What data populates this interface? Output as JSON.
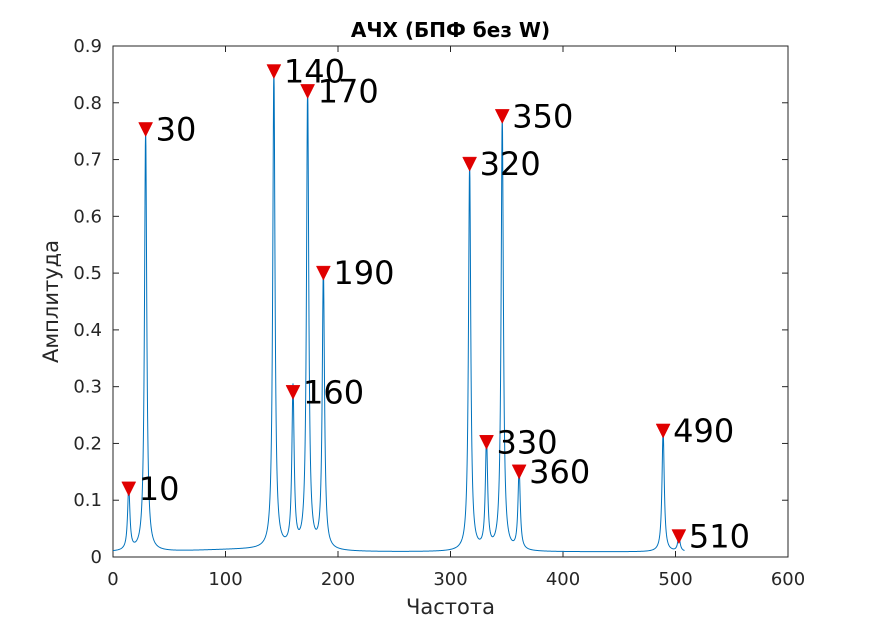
{
  "chart_data": {
    "type": "line",
    "title": "АЧХ (БПФ без W)",
    "xlabel": "Частота",
    "ylabel": "Амплитуда",
    "xlim": [
      0,
      600
    ],
    "ylim": [
      0,
      0.9
    ],
    "x_ticks": [
      "0",
      "100",
      "200",
      "300",
      "400",
      "500",
      "600"
    ],
    "y_ticks": [
      "0",
      "0.1",
      "0.2",
      "0.3",
      "0.4",
      "0.5",
      "0.6",
      "0.7",
      "0.8",
      "0.9"
    ],
    "grid": false,
    "line_color": "#0072BD",
    "marker_color": "#E00000",
    "series": [
      {
        "peaks": [
          {
            "x": 14,
            "y": 0.12
          },
          {
            "x": 29,
            "y": 0.753
          },
          {
            "x": 143,
            "y": 0.855
          },
          {
            "x": 160,
            "y": 0.29
          },
          {
            "x": 173,
            "y": 0.82
          },
          {
            "x": 187,
            "y": 0.5
          },
          {
            "x": 317,
            "y": 0.692
          },
          {
            "x": 332,
            "y": 0.202
          },
          {
            "x": 346,
            "y": 0.776
          },
          {
            "x": 361,
            "y": 0.15
          },
          {
            "x": 489,
            "y": 0.222
          },
          {
            "x": 503,
            "y": 0.036
          }
        ]
      }
    ],
    "annotations": [
      {
        "text": "10",
        "x": 14,
        "y": 0.12
      },
      {
        "text": "30",
        "x": 29,
        "y": 0.753
      },
      {
        "text": "140",
        "x": 143,
        "y": 0.855
      },
      {
        "text": "160",
        "x": 160,
        "y": 0.29
      },
      {
        "text": "170",
        "x": 173,
        "y": 0.82
      },
      {
        "text": "190",
        "x": 187,
        "y": 0.5
      },
      {
        "text": "320",
        "x": 317,
        "y": 0.692
      },
      {
        "text": "330",
        "x": 332,
        "y": 0.202
      },
      {
        "text": "350",
        "x": 346,
        "y": 0.776
      },
      {
        "text": "360",
        "x": 361,
        "y": 0.15
      },
      {
        "text": "490",
        "x": 489,
        "y": 0.222
      },
      {
        "text": "510",
        "x": 503,
        "y": 0.036
      }
    ]
  }
}
